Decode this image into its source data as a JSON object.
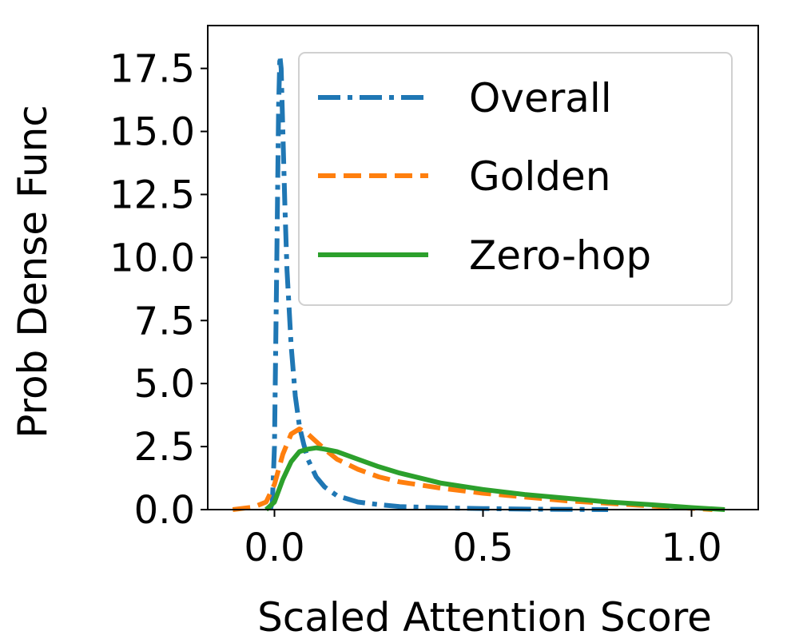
{
  "chart_data": {
    "type": "line",
    "title": "",
    "xlabel": "Scaled Attention Score",
    "ylabel": "Prob Dense Func",
    "xlim": [
      -0.16,
      1.16
    ],
    "ylim": [
      0,
      19.2
    ],
    "x_ticks": [
      "0.0",
      "0.5",
      "1.0"
    ],
    "y_ticks": [
      "0.0",
      "2.5",
      "5.0",
      "7.5",
      "10.0",
      "12.5",
      "15.0",
      "17.5"
    ],
    "grid": false,
    "legend_position": "top-right",
    "series": [
      {
        "name": "Overall",
        "color": "#1f77b4",
        "style": "dashdot",
        "x": [
          -0.01,
          -0.005,
          0.0,
          0.005,
          0.01,
          0.013,
          0.016,
          0.02,
          0.025,
          0.03,
          0.04,
          0.05,
          0.06,
          0.07,
          0.08,
          0.1,
          0.12,
          0.15,
          0.2,
          0.25,
          0.3,
          0.4,
          0.5,
          0.6,
          0.7,
          0.8
        ],
        "y": [
          0.0,
          0.3,
          2.5,
          9.0,
          16.0,
          18.0,
          17.5,
          15.0,
          12.0,
          9.5,
          6.5,
          4.5,
          3.3,
          2.6,
          2.0,
          1.3,
          0.9,
          0.55,
          0.3,
          0.2,
          0.12,
          0.07,
          0.04,
          0.02,
          0.01,
          0.0
        ]
      },
      {
        "name": "Golden",
        "color": "#ff7f0e",
        "style": "dashed",
        "x": [
          -0.1,
          -0.05,
          -0.02,
          0.0,
          0.02,
          0.04,
          0.06,
          0.08,
          0.1,
          0.12,
          0.15,
          0.2,
          0.25,
          0.3,
          0.4,
          0.5,
          0.6,
          0.7,
          0.8,
          0.9,
          1.0,
          1.05
        ],
        "y": [
          0.0,
          0.1,
          0.3,
          1.0,
          2.2,
          3.0,
          3.2,
          3.0,
          2.7,
          2.4,
          2.0,
          1.6,
          1.3,
          1.1,
          0.85,
          0.65,
          0.5,
          0.35,
          0.25,
          0.15,
          0.05,
          0.0
        ]
      },
      {
        "name": "Zero-hop",
        "color": "#2ca02c",
        "style": "solid",
        "x": [
          -0.02,
          0.0,
          0.02,
          0.04,
          0.06,
          0.08,
          0.1,
          0.12,
          0.15,
          0.2,
          0.25,
          0.3,
          0.4,
          0.5,
          0.6,
          0.7,
          0.8,
          0.9,
          1.0,
          1.08
        ],
        "y": [
          0.0,
          0.3,
          1.2,
          1.9,
          2.3,
          2.4,
          2.45,
          2.4,
          2.3,
          2.0,
          1.7,
          1.45,
          1.05,
          0.8,
          0.6,
          0.45,
          0.3,
          0.2,
          0.08,
          0.0
        ]
      }
    ]
  }
}
